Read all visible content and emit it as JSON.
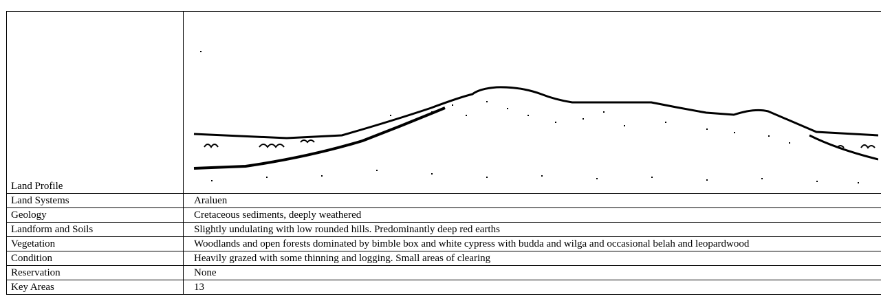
{
  "table": {
    "rows": [
      [
        "Land Profile"
      ],
      [
        "Land Systems",
        "Araluen"
      ],
      [
        "Geology",
        "Cretaceous sediments, deeply weathered"
      ],
      [
        "Landform and Soils",
        "Slightly undulating with low rounded hills. Predominantly deep red earths"
      ],
      [
        "Vegetation",
        "Woodlands and open forests dominated by bimble box and white cypress with budda and wilga and occasional belah and leopardwood"
      ],
      [
        "Condition",
        "Heavily grazed with some thinning and logging.  Small areas of clearing"
      ],
      [
        "Reservation",
        "None"
      ],
      [
        "Key Areas",
        "13"
      ]
    ]
  }
}
